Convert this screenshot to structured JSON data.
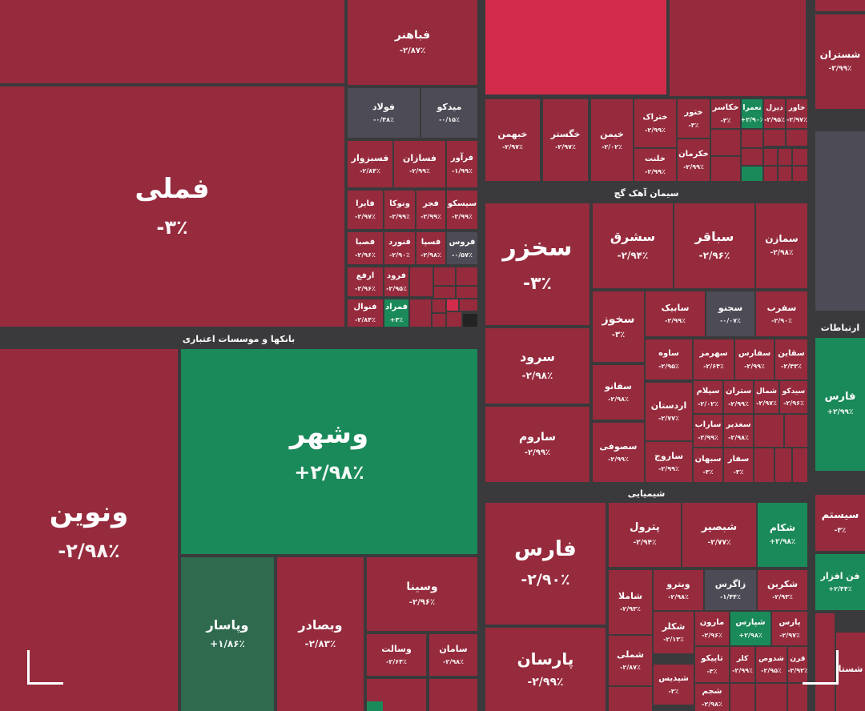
{
  "colors": {
    "red": "#962b3d",
    "bright": "#d22b4c",
    "green": "#1b8a5a",
    "darkgreen": "#2f6a4f",
    "gray": "#4d4b55",
    "bg": "#3a3a3c"
  },
  "sectors": {
    "banks": "بانکها و موسسات اعتباری",
    "cement": "سیمان آهک گچ",
    "chemical": "شیمیایی",
    "telecom": "ارتباطات"
  },
  "tiles": {
    "t_shastran": {
      "name": "شستران",
      "pct": "-۲/۹۹٪"
    },
    "t_fabahonar": {
      "name": "فباهنر",
      "pct": "-۲/۸۷٪"
    },
    "t_fameli": {
      "name": "فملی",
      "pct": "-۳٪"
    },
    "t_fulad": {
      "name": "فولاد",
      "pct": "-۰/۴۸٪"
    },
    "t_midko": {
      "name": "میدکو",
      "pct": "-۰/۱۵٪"
    },
    "t_fasabzevar": {
      "name": "فسبزوار",
      "pct": "-۲/۸۴٪"
    },
    "t_fasazan": {
      "name": "فسازان",
      "pct": "-۲/۹۹٪"
    },
    "t_farvar": {
      "name": "فرآور",
      "pct": "-۱/۹۹٪"
    },
    "t_fayra": {
      "name": "فایرا",
      "pct": "-۲/۹۷٪"
    },
    "t_vanoka": {
      "name": "ونوکا",
      "pct": "-۲/۹۹٪"
    },
    "t_fajr": {
      "name": "فجر",
      "pct": "-۲/۹۹٪"
    },
    "t_siskoo": {
      "name": "سیسکو",
      "pct": "-۲/۹۹٪"
    },
    "t_fasaa": {
      "name": "فصبا",
      "pct": "-۲/۹۶٪"
    },
    "t_fanvard": {
      "name": "فنورد",
      "pct": "-۲/۹۰٪"
    },
    "t_fasapa": {
      "name": "فسپا",
      "pct": "-۲/۹۸٪"
    },
    "t_faros": {
      "name": "فروس",
      "pct": "-۰/۵۷٪"
    },
    "t_arfa": {
      "name": "ارفع",
      "pct": "-۲/۹۶٪"
    },
    "t_farood": {
      "name": "فرود",
      "pct": "-۲/۹۵٪"
    },
    "t_fanval": {
      "name": "فنوال",
      "pct": "-۲/۸۴٪"
    },
    "t_famrad": {
      "name": "فمراد",
      "pct": "+۳٪"
    },
    "t_khebahman": {
      "name": "خبهمن",
      "pct": "-۲/۹۷٪"
    },
    "t_khegostar": {
      "name": "خگستر",
      "pct": "-۲/۹۷٪"
    },
    "t_khiman": {
      "name": "خیمن",
      "pct": "-۲/۰۲٪"
    },
    "t_khetrak": {
      "name": "ختراک",
      "pct": "-۲/۹۹٪"
    },
    "t_khatoor": {
      "name": "ختور",
      "pct": "-۳٪"
    },
    "t_khekaser": {
      "name": "خکاسر",
      "pct": "-۳٪"
    },
    "t_nemara": {
      "name": "نعمرا",
      "pct": "+۲/۹۰٪"
    },
    "t_dizel": {
      "name": "دیزل",
      "pct": "-۲/۹۵٪"
    },
    "t_khavar": {
      "name": "خاور",
      "pct": "-۲/۹۷٪"
    },
    "t_khelent": {
      "name": "خلنت",
      "pct": "-۲/۹۹٪"
    },
    "t_khekarman": {
      "name": "خکرمان",
      "pct": "-۲/۹۹٪"
    },
    "t_sakhzar": {
      "name": "سخزر",
      "pct": "-۳٪"
    },
    "t_shargh": {
      "name": "سشرق",
      "pct": "-۲/۹۴٪"
    },
    "t_sabagher": {
      "name": "سباقر",
      "pct": "-۲/۹۶٪"
    },
    "t_samazan": {
      "name": "سمازن",
      "pct": "-۲/۹۸٪"
    },
    "t_sakhooz": {
      "name": "سخوز",
      "pct": "-۳٪"
    },
    "t_sabik": {
      "name": "سابیک",
      "pct": "-۲/۹۹٪"
    },
    "t_sejnoo": {
      "name": "سجنو",
      "pct": "-۰/۰۷٪"
    },
    "t_safarb": {
      "name": "سفرب",
      "pct": "-۲/۹۰٪"
    },
    "t_sarood": {
      "name": "سرود",
      "pct": "-۲/۹۸٪"
    },
    "t_saveh": {
      "name": "ساوه",
      "pct": "-۲/۹۵٪"
    },
    "t_sahormoz": {
      "name": "سهرمز",
      "pct": "-۲/۶۴٪"
    },
    "t_safars": {
      "name": "سفارس",
      "pct": "-۲/۹۹٪"
    },
    "t_saghayen": {
      "name": "سقاین",
      "pct": "-۲/۴۳٪"
    },
    "t_safano": {
      "name": "سفانو",
      "pct": "-۲/۹۸٪"
    },
    "t_silam": {
      "name": "سیلام",
      "pct": "-۲/۰۲٪"
    },
    "t_satran": {
      "name": "ستران",
      "pct": "-۲/۹۹٪"
    },
    "t_shomal": {
      "name": "شمال",
      "pct": "-۲/۹۷٪"
    },
    "t_sidko": {
      "name": "سیدکو",
      "pct": "-۲/۹۶٪"
    },
    "t_ardestan": {
      "name": "اردستان",
      "pct": "-۲/۷۷٪"
    },
    "t_sarab": {
      "name": "ساراب",
      "pct": "-۲/۹۹٪"
    },
    "t_sadbir": {
      "name": "سغدیر",
      "pct": "-۲/۹۸٪"
    },
    "t_saroom": {
      "name": "ساروم",
      "pct": "-۲/۹۹٪"
    },
    "t_sasufi": {
      "name": "سصوفی",
      "pct": "-۲/۹۹٪"
    },
    "t_sarooj": {
      "name": "ساروج",
      "pct": "-۲/۹۹٪"
    },
    "t_sahban": {
      "name": "سبهان",
      "pct": "-۳٪"
    },
    "t_safar": {
      "name": "سفار",
      "pct": "-۳٪"
    },
    "t_vabshahr": {
      "name": "وشهر",
      "pct": "+۲/۹۸٪"
    },
    "t_vanovin": {
      "name": "ونوین",
      "pct": "-۲/۹۸٪"
    },
    "t_vapasar": {
      "name": "وپاسار",
      "pct": "+۱/۸۶٪"
    },
    "t_vabsader": {
      "name": "وبصادر",
      "pct": "-۲/۸۳٪"
    },
    "t_vasina": {
      "name": "وسینا",
      "pct": "-۲/۹۶٪"
    },
    "t_vasalt": {
      "name": "وسالت",
      "pct": "-۲/۶۴٪"
    },
    "t_saman": {
      "name": "سامان",
      "pct": "-۲/۹۸٪"
    },
    "t_faars": {
      "name": "فارس",
      "pct": "-۲/۹۰٪"
    },
    "t_petrol": {
      "name": "پترول",
      "pct": "-۲/۹۴٪"
    },
    "t_shabsir": {
      "name": "شبصیر",
      "pct": "-۲/۷۷٪"
    },
    "t_shakam": {
      "name": "شکام",
      "pct": "+۲/۹۸٪"
    },
    "t_shamla": {
      "name": "شاملا",
      "pct": "-۲/۹۳٪"
    },
    "t_vitro": {
      "name": "وبترو",
      "pct": "-۲/۹۸٪"
    },
    "t_zagros": {
      "name": "زاگرس",
      "pct": "-۱/۴۴٪"
    },
    "t_shokrin": {
      "name": "شکرین",
      "pct": "-۲/۹۳٪"
    },
    "t_shekar": {
      "name": "شکلر",
      "pct": "-۲/۱۳٪"
    },
    "t_maron": {
      "name": "مارون",
      "pct": "-۲/۹۶٪"
    },
    "t_shparss": {
      "name": "شپارس",
      "pct": "+۲/۹۸٪"
    },
    "t_parss": {
      "name": "پارس",
      "pct": "-۲/۹۷٪"
    },
    "t_parsan": {
      "name": "پارسان",
      "pct": "-۲/۹۹٪"
    },
    "t_shemli": {
      "name": "شملی",
      "pct": "-۲/۸۷٪"
    },
    "t_shipdis": {
      "name": "شپدیس",
      "pct": "-۳٪"
    },
    "t_tapiko": {
      "name": "تاپیکو",
      "pct": "-۳٪"
    },
    "t_kalor": {
      "name": "کلر",
      "pct": "-۲/۹۹٪"
    },
    "t_shedos": {
      "name": "شدوص",
      "pct": "-۲/۹۵٪"
    },
    "t_gharn": {
      "name": "قرن",
      "pct": "-۲/۹۲٪"
    },
    "t_shegam": {
      "name": "شجم",
      "pct": "-۲/۹۸٪"
    },
    "t_sistam": {
      "name": "سیستم",
      "pct": "-۳٪"
    },
    "t_fanafzar": {
      "name": "فن افزار",
      "pct": "+۲/۴۴٪"
    },
    "t_hamfars": {
      "name": "فارس",
      "pct": "+۲/۹۹٪"
    },
    "t_shesta": {
      "name": "شستا",
      "pct": ""
    }
  }
}
